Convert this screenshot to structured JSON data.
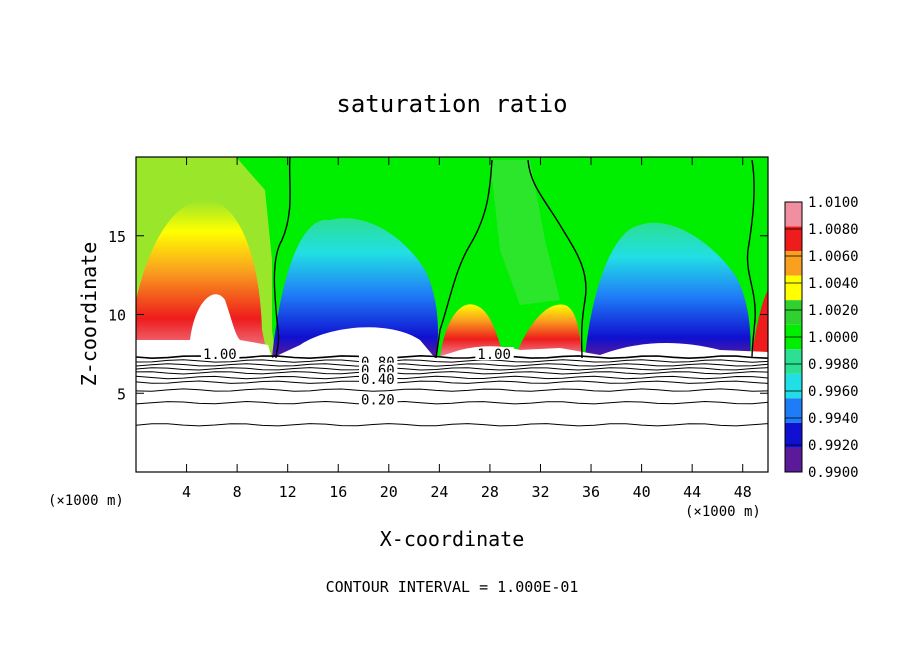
{
  "chart_data": {
    "type": "heatmap",
    "title": "saturation ratio",
    "xlabel": "X-coordinate",
    "ylabel": "Z-coordinate",
    "x_unit_label": "(×1000 m)",
    "z_unit_label": "(×1000 m)",
    "xlim": [
      0,
      50
    ],
    "ylim": [
      0,
      20
    ],
    "x_ticks": [
      4,
      8,
      12,
      16,
      20,
      24,
      28,
      32,
      36,
      40,
      44,
      48
    ],
    "y_ticks": [
      5,
      10,
      15
    ],
    "note": "CONTOUR INTERVAL = 1.000E-01",
    "colorbar": {
      "levels": [
        "1.0100",
        "1.0080",
        "1.0060",
        "1.0040",
        "1.0020",
        "1.0000",
        "0.9980",
        "0.9960",
        "0.9940",
        "0.9920",
        "0.9900"
      ],
      "colors": [
        "#f08fa0",
        "#ee1c1c",
        "#f9a01e",
        "#ffff00",
        "#2fd12f",
        "#00ee00",
        "#2bdf93",
        "#21dfe4",
        "#1f7cf7",
        "#1010d0",
        "#5a1a9a"
      ]
    },
    "contour_labels": [
      {
        "text": "1.00",
        "x": 5.3,
        "z": 7.3
      },
      {
        "text": "1.00",
        "x": 27.0,
        "z": 7.3
      },
      {
        "text": "0.80",
        "x": 17.8,
        "z": 6.8
      },
      {
        "text": "0.60",
        "x": 17.8,
        "z": 6.3
      },
      {
        "text": "0.40",
        "x": 17.8,
        "z": 5.7
      },
      {
        "text": "0.20",
        "x": 17.8,
        "z": 4.4
      }
    ],
    "contour_lines_z": [
      7.3,
      7.05,
      6.8,
      6.55,
      6.3,
      6.0,
      5.7,
      5.2,
      4.4,
      3.0
    ]
  }
}
